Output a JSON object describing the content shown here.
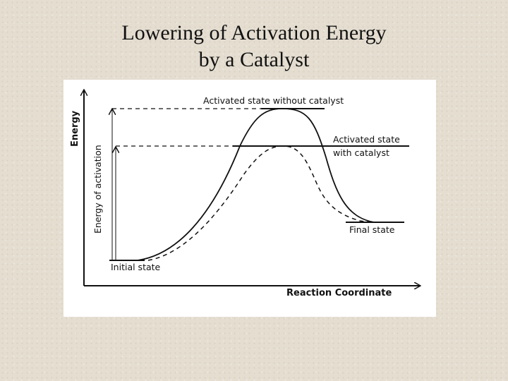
{
  "slide": {
    "title_line1": "Lowering of Activation Energy",
    "title_line2": "by a Catalyst"
  },
  "diagram": {
    "y_axis_label": "Energy",
    "x_axis_label": "Reaction Coordinate",
    "activation_arrow_label": "Energy of activation",
    "label_without_catalyst": "Activated state without catalyst",
    "label_with_catalyst_line1": "Activated state",
    "label_with_catalyst_line2": "with catalyst",
    "label_final_state": "Final state",
    "label_initial_state": "Initial state"
  }
}
